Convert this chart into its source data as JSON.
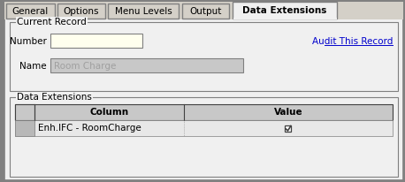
{
  "tabs": [
    "General",
    "Options",
    "Menu Levels",
    "Output",
    "Data Extensions"
  ],
  "active_tab": "Data Extensions",
  "bg_color": "#d4d0c8",
  "panel_bg": "#f0f0f0",
  "tab_bg": "#d4d0c8",
  "active_tab_bg": "#f0f0f0",
  "border_color": "#808080",
  "dark_border": "#404040",
  "section1_title": "Current Record",
  "section2_title": "Data Extensions",
  "number_label": "Number",
  "name_label": "Name",
  "number_field_color": "#ffffee",
  "name_field_color": "#c8c8c8",
  "name_field_text": "Room Charge",
  "name_field_text_color": "#a0a0a0",
  "audit_link_text": "Audit This Record",
  "audit_link_color": "#0000cc",
  "col_header1": "Column",
  "col_header2": "Value",
  "header_bg": "#c8c8c8",
  "row1_cell1": "Enh.IFC - RoomCharge",
  "row1_bg": "#e8e8e8",
  "row1_indicator_bg": "#b8b8b8",
  "checkbox_checked": true,
  "outer_bg": "#808080",
  "title_fontsize": 7.5,
  "label_fontsize": 7.5,
  "tab_fontsize": 7.5,
  "tab_x": [
    4,
    62,
    120,
    204,
    262
  ],
  "tab_widths": [
    55,
    55,
    80,
    54,
    118
  ]
}
